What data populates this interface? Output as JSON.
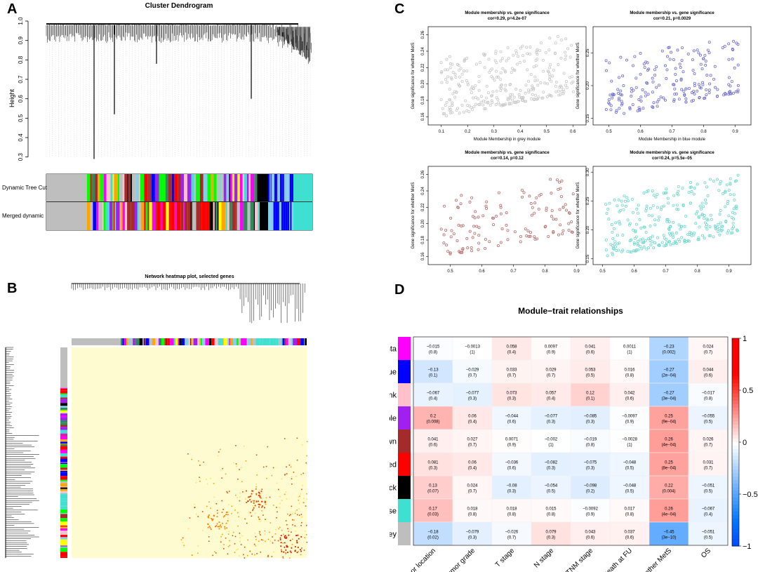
{
  "panels": {
    "a": "A",
    "b": "B",
    "c": "C",
    "d": "D"
  },
  "panel_a": {
    "title": "Cluster Dendrogram",
    "ylabel": "Height",
    "yticks": [
      "0.3",
      "0.4",
      "0.5",
      "0.6",
      "0.7",
      "0.8",
      "0.9",
      "1.0"
    ],
    "row_labels": [
      "Dynamic Tree Cut",
      "Merged dynamic"
    ]
  },
  "panel_b": {
    "title": "Network heatmap plot, selected genes"
  },
  "chart_data": [
    {
      "type": "dendrogram",
      "title": "Cluster Dendrogram",
      "ylabel": "Height",
      "ylim": [
        0.27,
        1.0
      ],
      "yticks": [
        0.3,
        0.4,
        0.5,
        0.6,
        0.7,
        0.8,
        0.9,
        1.0
      ],
      "tall_branch_heights": [
        0.29,
        0.52,
        0.78,
        0.6
      ],
      "color_bars": [
        "Dynamic Tree Cut",
        "Merged dynamic"
      ]
    },
    {
      "type": "scatter",
      "title": "Module membership vs. gene significance",
      "subtitle": "cor=0.29, p=4.2e-07",
      "xlabel": "Module Membership in grey module",
      "ylabel": "Gene significance for  whether MetS",
      "color": "#c8c8c8",
      "xlim": [
        0.05,
        0.65
      ],
      "ylim": [
        0.15,
        0.27
      ],
      "xticks": [
        "0.1",
        "0.2",
        "0.3",
        "0.4",
        "0.5",
        "0.6"
      ],
      "yticks": [
        "0.16",
        "0.18",
        "0.20",
        "0.22",
        "0.24",
        "0.26"
      ]
    },
    {
      "type": "scatter",
      "title": "Module membership vs. gene significance",
      "subtitle": "cor=0.21, p=0.0029",
      "xlabel": "Module Membership in blue module",
      "ylabel": "Gene significance for  whether MetS",
      "color": "#6e6ed2",
      "xlim": [
        0.45,
        0.95
      ],
      "ylim": [
        0.14,
        0.29
      ],
      "xticks": [
        "0.5",
        "0.6",
        "0.7",
        "0.8",
        "0.9"
      ],
      "yticks": [
        "0.15",
        "0.20",
        "0.25"
      ]
    },
    {
      "type": "scatter",
      "title": "Module membership vs. gene significance",
      "subtitle": "cor=0.14, p=0.12",
      "xlabel": "Module Membership in brown module",
      "ylabel": "Gene significance for  whether MetS",
      "color": "#b87070",
      "xlim": [
        0.43,
        0.93
      ],
      "ylim": [
        0.15,
        0.27
      ],
      "xticks": [
        "0.5",
        "0.6",
        "0.7",
        "0.8",
        "0.9"
      ],
      "yticks": [
        "0.16",
        "0.18",
        "0.20",
        "0.22",
        "0.24",
        "0.26"
      ]
    },
    {
      "type": "scatter",
      "title": "Module membership vs. gene significance",
      "subtitle": "cor=0.24, p=5.5e−05",
      "xlabel": "Module Membership in turquoise module",
      "ylabel": "Gene significance for  whether MetS",
      "color": "#70d8cc",
      "xlim": [
        0.47,
        0.97
      ],
      "ylim": [
        0.14,
        0.31
      ],
      "xticks": [
        "0.5",
        "0.6",
        "0.7",
        "0.8",
        "0.9"
      ],
      "yticks": [
        "0.15",
        "0.20",
        "0.25",
        "0.30"
      ]
    },
    {
      "type": "heatmap",
      "title": "Module−trait relationships",
      "rows": [
        "MEmagenta",
        "MEblue",
        "MEpink",
        "MEpurple",
        "MEbrown",
        "MEred",
        "MEblack",
        "MEturquoise",
        "MEgrey"
      ],
      "row_colors": [
        "#ff00ff",
        "#0000ff",
        "#ffc0cb",
        "#a020f0",
        "#a52a2a",
        "#ff0000",
        "#000000",
        "#40e0d0",
        "#bebebe"
      ],
      "columns": [
        "Tumor location",
        "Tumor grade",
        "T stage",
        "N stage",
        "TNM stage",
        "Death at FU",
        "whether MetS",
        "OS"
      ],
      "values": [
        [
          -0.015,
          -0.0013,
          0.058,
          0.0097,
          0.041,
          0.0011,
          -0.23,
          0.024
        ],
        [
          -0.13,
          -0.029,
          0.033,
          0.029,
          0.053,
          0.016,
          -0.27,
          0.044
        ],
        [
          -0.067,
          -0.077,
          0.073,
          0.057,
          0.12,
          0.042,
          -0.27,
          -0.017
        ],
        [
          0.2,
          0.06,
          -0.044,
          -0.077,
          -0.085,
          -0.0097,
          0.25,
          -0.055
        ],
        [
          0.041,
          0.027,
          0.0071,
          -0.002,
          -0.019,
          -0.0028,
          0.26,
          0.026
        ],
        [
          0.081,
          0.06,
          -0.036,
          -0.082,
          -0.075,
          -0.048,
          0.25,
          0.031
        ],
        [
          0.13,
          0.024,
          -0.08,
          -0.054,
          -0.098,
          -0.048,
          0.22,
          -0.051
        ],
        [
          0.17,
          0.018,
          0.018,
          0.015,
          -0.0092,
          0.017,
          0.26,
          -0.067
        ],
        [
          -0.18,
          -0.079,
          -0.026,
          0.079,
          0.043,
          0.037,
          -0.45,
          -0.051
        ]
      ],
      "value_labels": [
        [
          "−0.015",
          "−0.0013",
          "0.058",
          "0.0097",
          "0.041",
          "0.0011",
          "−0.23",
          "0.024"
        ],
        [
          "−0.13",
          "−0.029",
          "0.033",
          "0.029",
          "0.053",
          "0.016",
          "−0.27",
          "0.044"
        ],
        [
          "−0.067",
          "−0.077",
          "0.073",
          "0.057",
          "0.12",
          "0.042",
          "−0.27",
          "−0.017"
        ],
        [
          "0.2",
          "0.06",
          "−0.044",
          "−0.077",
          "−0.085",
          "−0.0097",
          "0.25",
          "−0.055"
        ],
        [
          "0.041",
          "0.027",
          "0.0071",
          "−0.002",
          "−0.019",
          "−0.0028",
          "0.26",
          "0.026"
        ],
        [
          "0.081",
          "0.06",
          "−0.036",
          "−0.082",
          "−0.075",
          "−0.048",
          "0.25",
          "0.031"
        ],
        [
          "0.13",
          "0.024",
          "−0.08",
          "−0.054",
          "−0.098",
          "−0.048",
          "0.22",
          "−0.051"
        ],
        [
          "0.17",
          "0.018",
          "0.018",
          "0.015",
          "−0.0092",
          "0.017",
          "0.26",
          "−0.067"
        ],
        [
          "−0.18",
          "−0.079",
          "−0.026",
          "0.079",
          "0.043",
          "0.037",
          "−0.45",
          "−0.051"
        ]
      ],
      "pvalues": [
        [
          "(0.8)",
          "(1)",
          "(0.4)",
          "(0.9)",
          "(0.6)",
          "(1)",
          "(0.002)",
          "(0.7)"
        ],
        [
          "(0.1)",
          "(0.7)",
          "(0.7)",
          "(0.7)",
          "(0.5)",
          "(0.8)",
          "(2e−04)",
          "(0.6)"
        ],
        [
          "(0.4)",
          "(0.3)",
          "(0.3)",
          "(0.4)",
          "(0.1)",
          "(0.6)",
          "(3e−04)",
          "(0.8)"
        ],
        [
          "(0.008)",
          "(0.4)",
          "(0.6)",
          "(0.3)",
          "(0.3)",
          "(0.9)",
          "(9e−04)",
          "(0.5)"
        ],
        [
          "(0.6)",
          "(0.7)",
          "(0.9)",
          "(1)",
          "(0.8)",
          "(1)",
          "(4e−04)",
          "(0.7)"
        ],
        [
          "(0.3)",
          "(0.4)",
          "(0.6)",
          "(0.3)",
          "(0.3)",
          "(0.5)",
          "(8e−04)",
          "(0.7)"
        ],
        [
          "(0.07)",
          "(0.7)",
          "(0.3)",
          "(0.5)",
          "(0.2)",
          "(0.5)",
          "(0.004)",
          "(0.5)"
        ],
        [
          "(0.03)",
          "(0.8)",
          "(0.8)",
          "(0.8)",
          "(0.9)",
          "(0.8)",
          "(4e−04)",
          "(0.4)"
        ],
        [
          "(0.02)",
          "(0.3)",
          "(0.7)",
          "(0.3)",
          "(0.6)",
          "(0.6)",
          "(3e−10)",
          "(0.5)"
        ]
      ],
      "colorbar_ticks": [
        "1",
        "0.5",
        "0",
        "−0.5",
        "−1"
      ],
      "range": [
        -1,
        1
      ]
    }
  ]
}
